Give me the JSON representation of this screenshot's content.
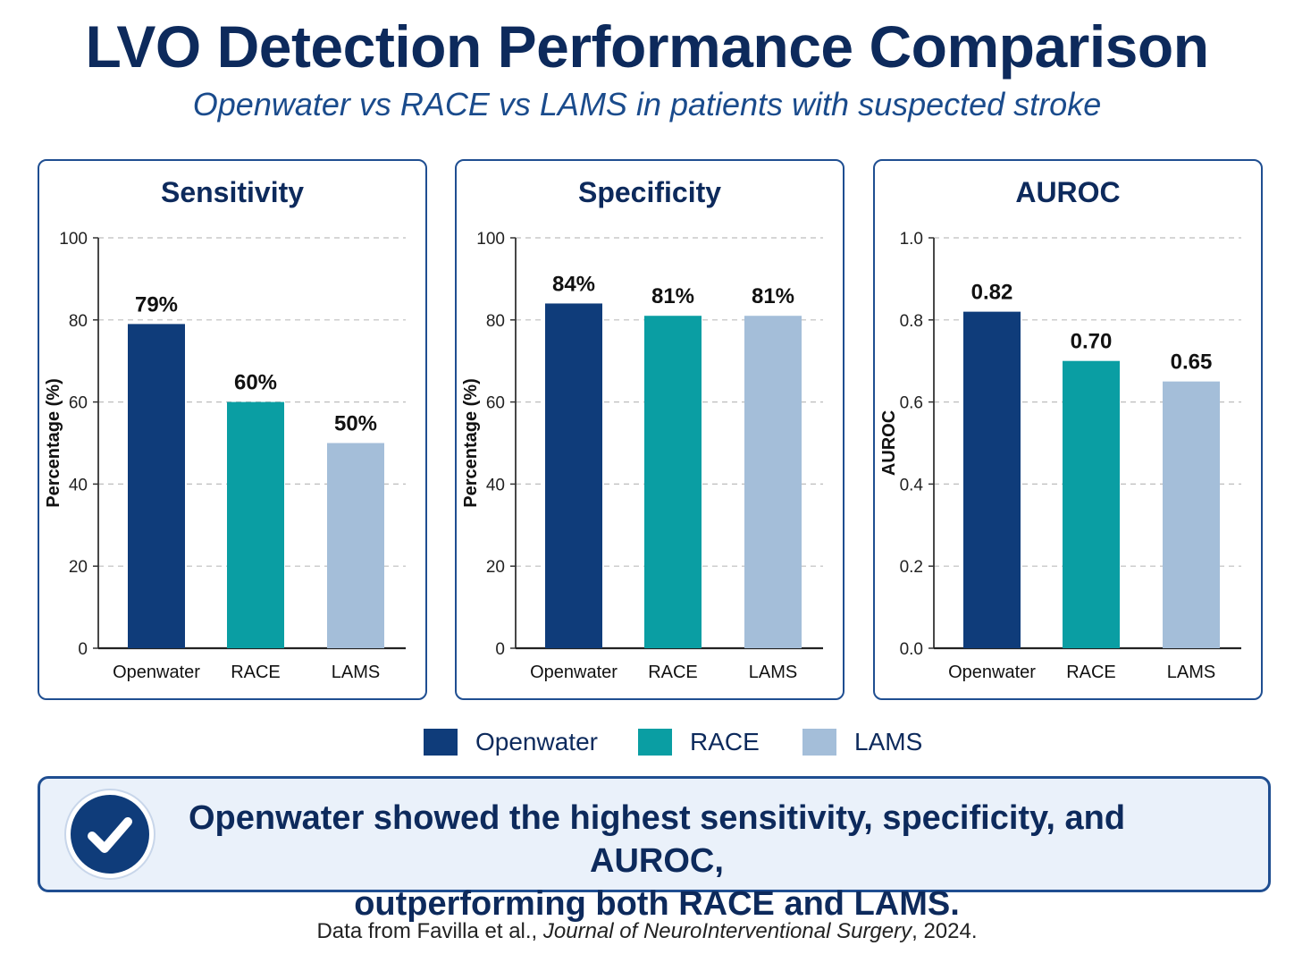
{
  "title": "LVO Detection Performance Comparison",
  "subtitle": "Openwater vs RACE vs LAMS in patients with suspected stroke",
  "colors": {
    "Openwater": "#0f3c7a",
    "RACE": "#0a9ea3",
    "LAMS": "#a4bed9",
    "accent": "#1f4e91"
  },
  "chart_data": [
    {
      "type": "bar",
      "title": "Sensitivity",
      "ylabel": "Percentage (%)",
      "categories": [
        "Openwater",
        "RACE",
        "LAMS"
      ],
      "values": [
        79,
        60,
        50
      ],
      "value_labels": [
        "79%",
        "60%",
        "50%"
      ],
      "ylim": [
        0,
        100
      ],
      "yticks": [
        "0",
        "20",
        "40",
        "60",
        "80",
        "100"
      ],
      "ytick_values": [
        0,
        20,
        40,
        60,
        80,
        100
      ],
      "grid": true
    },
    {
      "type": "bar",
      "title": "Specificity",
      "ylabel": "Percentage (%)",
      "categories": [
        "Openwater",
        "RACE",
        "LAMS"
      ],
      "values": [
        84,
        81,
        81
      ],
      "value_labels": [
        "84%",
        "81%",
        "81%"
      ],
      "ylim": [
        0,
        100
      ],
      "yticks": [
        "0",
        "20",
        "40",
        "60",
        "80",
        "100"
      ],
      "ytick_values": [
        0,
        20,
        40,
        60,
        80,
        100
      ],
      "grid": true
    },
    {
      "type": "bar",
      "title": "AUROC",
      "ylabel": "AUROC",
      "categories": [
        "Openwater",
        "RACE",
        "LAMS"
      ],
      "values": [
        0.82,
        0.7,
        0.65
      ],
      "value_labels": [
        "0.82",
        "0.70",
        "0.65"
      ],
      "ylim": [
        0,
        1.0
      ],
      "yticks": [
        "0.0",
        "0.2",
        "0.4",
        "0.6",
        "0.8",
        "1.0"
      ],
      "ytick_values": [
        0,
        0.2,
        0.4,
        0.6,
        0.8,
        1.0
      ],
      "grid": true
    }
  ],
  "legend": {
    "placement": "bottom-center",
    "items": [
      "Openwater",
      "RACE",
      "LAMS"
    ]
  },
  "callout": {
    "icon": "checkmark-icon",
    "line1": "Openwater showed the highest sensitivity, specificity, and AUROC,",
    "line2": "outperforming both RACE and LAMS."
  },
  "source": {
    "prefix": "Data from Favilla et al., ",
    "journal": "Journal of NeuroInterventional Surgery",
    "suffix": ", 2024."
  }
}
